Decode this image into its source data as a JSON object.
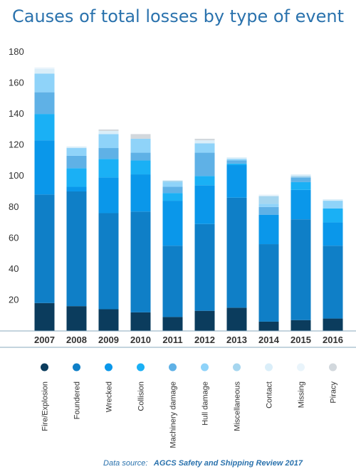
{
  "chart_data": {
    "type": "bar",
    "stacked": true,
    "title": "Causes of total losses by type of event",
    "xlabel": "",
    "ylabel": "",
    "ylim": [
      0,
      180
    ],
    "yticks": [
      20,
      40,
      60,
      80,
      100,
      120,
      140,
      160,
      180
    ],
    "grid": false,
    "legend_position": "bottom",
    "categories": [
      "2007",
      "2008",
      "2009",
      "2010",
      "2011",
      "2012",
      "2013",
      "2014",
      "2015",
      "2016"
    ],
    "series": [
      {
        "name": "Fire/Explosion",
        "color": "#0b3c5d",
        "values": [
          18,
          16,
          14,
          12,
          9,
          13,
          15,
          6,
          7,
          8
        ]
      },
      {
        "name": "Foundered",
        "color": "#0f7fc7",
        "values": [
          70,
          74,
          62,
          65,
          46,
          56,
          71,
          50,
          65,
          47
        ]
      },
      {
        "name": "Wrecked",
        "color": "#0a97ea",
        "values": [
          35,
          3,
          23,
          24,
          29,
          25,
          21,
          19,
          19,
          15
        ]
      },
      {
        "name": "Collision",
        "color": "#1ab0f5",
        "values": [
          17,
          12,
          12,
          9,
          5,
          6,
          1,
          0,
          5,
          9
        ]
      },
      {
        "name": "Machinery damage",
        "color": "#5fb1e6",
        "values": [
          14,
          8,
          7,
          5,
          4,
          15,
          2,
          5,
          3,
          0
        ]
      },
      {
        "name": "Hull damage",
        "color": "#8fd3f9",
        "values": [
          12,
          5,
          9,
          9,
          3,
          6,
          1,
          2,
          0,
          5
        ]
      },
      {
        "name": "Miscellaneous",
        "color": "#a6d6ef",
        "values": [
          0,
          0,
          0,
          0,
          1,
          0,
          0,
          5,
          1,
          0
        ]
      },
      {
        "name": "Contact",
        "color": "#daeef9",
        "values": [
          3,
          1,
          2,
          0,
          0,
          2,
          1,
          0,
          1,
          1
        ]
      },
      {
        "name": "Missing",
        "color": "#e9f4fb",
        "values": [
          1,
          0,
          0,
          0,
          0,
          0,
          0,
          1,
          0,
          0
        ]
      },
      {
        "name": "Piracy",
        "color": "#d2d8dd",
        "values": [
          0,
          0,
          1,
          3,
          0,
          1,
          0,
          0,
          0,
          0
        ]
      }
    ]
  },
  "source": {
    "label": "Data source:",
    "name": "AGCS Safety and Shipping Review 2017"
  }
}
